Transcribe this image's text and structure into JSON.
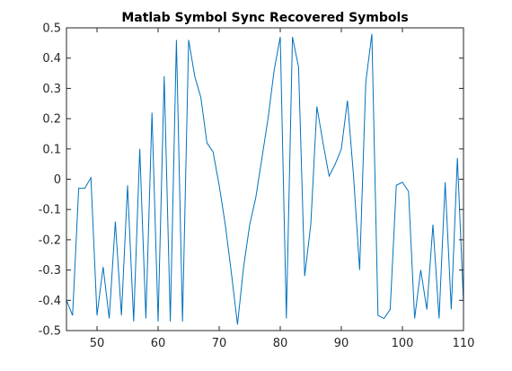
{
  "chart_data": {
    "type": "line",
    "title": "Matlab Symbol Sync Recovered Symbols",
    "xlabel": "",
    "ylabel": "",
    "xlim": [
      45,
      110
    ],
    "ylim": [
      -0.5,
      0.5
    ],
    "xticks": [
      50,
      60,
      70,
      80,
      90,
      100,
      110
    ],
    "yticks": [
      -0.5,
      -0.4,
      -0.3,
      -0.2,
      -0.1,
      0,
      0.1,
      0.2,
      0.3,
      0.4,
      0.5
    ],
    "grid": false,
    "line_color": "#0072BD",
    "series": [
      {
        "x": [
          45,
          46,
          47,
          48,
          49,
          50,
          51,
          52,
          53,
          54,
          55,
          56,
          57,
          58,
          59,
          60,
          61,
          62,
          63,
          64,
          65,
          66,
          67,
          68,
          69,
          70,
          71,
          72,
          73,
          74,
          75,
          76,
          77,
          78,
          79,
          80,
          81,
          82,
          83,
          84,
          85,
          86,
          87,
          88,
          89,
          90,
          91,
          92,
          93,
          94,
          95,
          96,
          97,
          98,
          99,
          100,
          101,
          102,
          103,
          104,
          105,
          106,
          107,
          108,
          109,
          110
        ],
        "y": [
          -0.4,
          -0.45,
          -0.03,
          -0.03,
          0.005,
          -0.45,
          -0.29,
          -0.46,
          -0.14,
          -0.45,
          -0.02,
          -0.47,
          0.1,
          -0.46,
          0.22,
          -0.47,
          0.34,
          -0.47,
          0.46,
          -0.47,
          0.46,
          0.34,
          0.27,
          0.12,
          0.09,
          -0.02,
          -0.15,
          -0.31,
          -0.48,
          -0.29,
          -0.15,
          -0.06,
          0.07,
          0.2,
          0.36,
          0.47,
          -0.46,
          0.47,
          0.37,
          -0.32,
          -0.15,
          0.24,
          0.12,
          0.01,
          0.05,
          0.1,
          0.26,
          0.01,
          -0.3,
          0.32,
          0.48,
          -0.45,
          -0.46,
          -0.43,
          -0.02,
          -0.01,
          -0.04,
          -0.46,
          -0.3,
          -0.43,
          -0.15,
          -0.46,
          -0.01,
          -0.43,
          0.07,
          -0.41
        ]
      }
    ]
  }
}
